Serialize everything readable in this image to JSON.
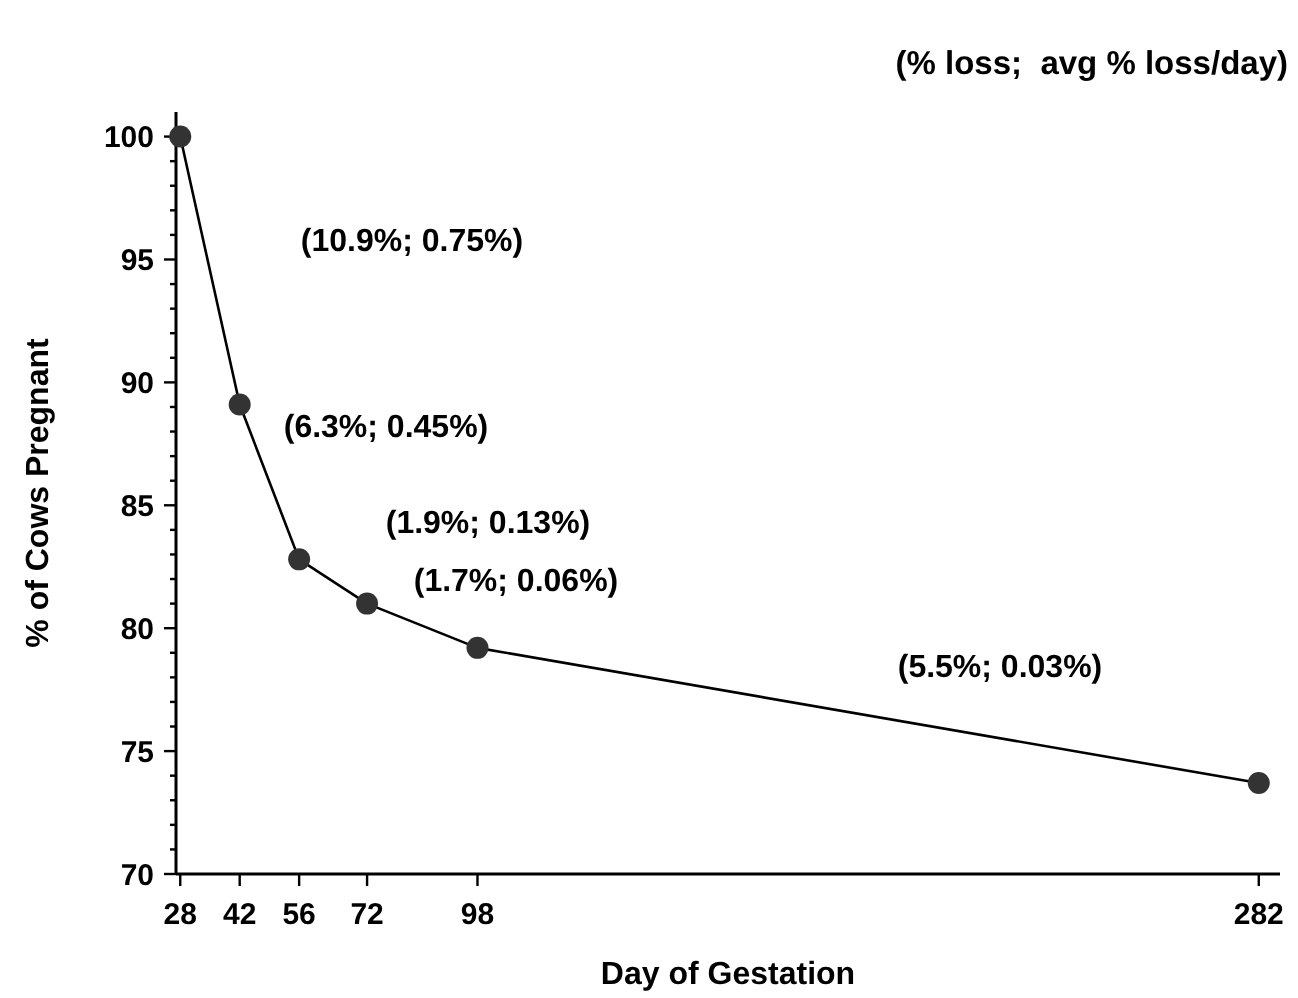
{
  "chart_data": {
    "type": "line",
    "title": "(% loss;  avg % loss/day)",
    "xlabel": "Day of Gestation",
    "ylabel": "% of Cows Pregnant",
    "x": [
      28,
      42,
      56,
      72,
      98,
      282
    ],
    "series": [
      {
        "color": "#000000",
        "values": [
          100,
          89.1,
          82.8,
          81.0,
          79.2,
          73.7
        ]
      }
    ],
    "marker": "circle",
    "line_style": "solid",
    "xlim": [
      27,
      287
    ],
    "xticks": [
      28,
      42,
      56,
      72,
      98,
      282
    ],
    "ylim": [
      70,
      101
    ],
    "yticks": [
      70,
      {
        "value": 71,
        "label": null
      },
      {
        "value": 72,
        "label": null
      },
      {
        "value": 73,
        "label": null
      },
      {
        "value": 74,
        "label": null
      },
      75,
      {
        "value": 76,
        "label": null
      },
      {
        "value": 77,
        "label": null
      },
      {
        "value": 78,
        "label": null
      },
      {
        "value": 79,
        "label": null
      },
      80,
      {
        "value": 81,
        "label": null
      },
      {
        "value": 82,
        "label": null
      },
      {
        "value": 83,
        "label": null
      },
      {
        "value": 84,
        "label": null
      },
      85,
      {
        "value": 86,
        "label": null
      },
      {
        "value": 87,
        "label": null
      },
      {
        "value": 88,
        "label": null
      },
      {
        "value": 89,
        "label": null
      },
      90,
      {
        "value": 91,
        "label": null
      },
      {
        "value": 92,
        "label": null
      },
      {
        "value": 93,
        "label": null
      },
      {
        "value": 94,
        "label": null
      },
      95,
      {
        "value": 96,
        "label": null
      },
      {
        "value": 97,
        "label": null
      },
      {
        "value": 98,
        "label": null
      },
      {
        "value": 99,
        "label": null
      },
      100
    ],
    "grid": false,
    "annotations": [
      "(10.9%; 0.75%)",
      "(6.3%; 0.45%)",
      "(1.9%; 0.13%)",
      "(1.7%; 0.06%)",
      "(5.5%; 0.03%)"
    ]
  }
}
